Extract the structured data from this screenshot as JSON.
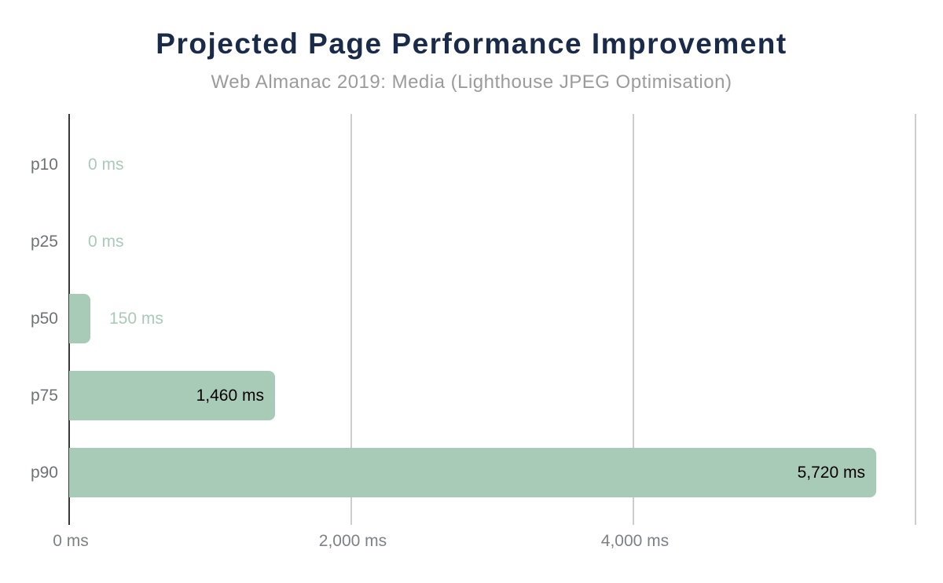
{
  "chart_data": {
    "type": "bar",
    "orientation": "horizontal",
    "title": "Projected Page Performance Improvement",
    "subtitle": "Web Almanac 2019: Media (Lighthouse JPEG Optimisation)",
    "unit": "ms",
    "categories": [
      "p10",
      "p25",
      "p50",
      "p75",
      "p90"
    ],
    "values": [
      0,
      0,
      150,
      1460,
      5720
    ],
    "value_labels": [
      "0 ms",
      "0 ms",
      "150 ms",
      "1,460 ms",
      "5,720 ms"
    ],
    "label_inside": [
      false,
      false,
      false,
      true,
      true
    ],
    "x_axis": {
      "min": 0,
      "max": 6030,
      "gridline_values": [
        2000,
        4000,
        6000
      ],
      "ticks": [
        {
          "value": 0,
          "label": "0 ms"
        },
        {
          "value": 2000,
          "label": "2,000 ms"
        },
        {
          "value": 4000,
          "label": "4,000 ms"
        }
      ]
    },
    "legend": "none",
    "grid": "vertical-only",
    "colors": {
      "background": "#ffffff",
      "title": "#1a2b49",
      "subtitle": "#9b9b9b",
      "bar": "#a8cbb7",
      "value_label_outside": "#a8cbb7",
      "value_label_inside": "#000000",
      "category_label": "#6f7275",
      "tick_label": "#7e8185",
      "axis_line": "#383838",
      "gridline": "#cdcdcd"
    }
  }
}
